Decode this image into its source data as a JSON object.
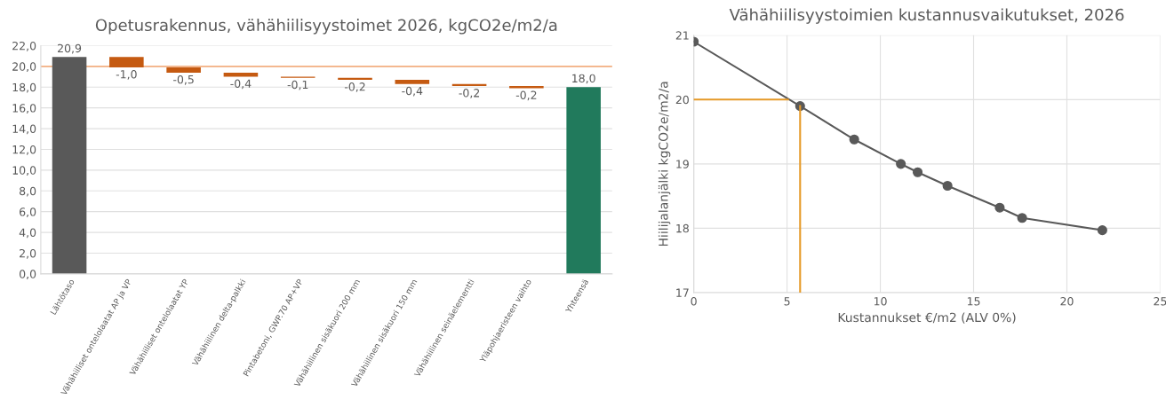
{
  "chart_data": [
    {
      "type": "bar",
      "title": "Opetusrakennus, vähähiilisyystoimet 2026, kgCO2e/m2/a",
      "categories": [
        "Lähtötaso",
        "Vähähiiliset ontelolaatat AP ja VP",
        "Vähähiiliset ontelolaatat YP",
        "Vähähiilinen delta-palkki",
        "Pintabetoni, GWP.70 AP+VP",
        "Vähähiilinen sisäkuori 200 mm",
        "Vähähiilinen sisäkuori 150 mm",
        "Vähähiilinen seinäelementti",
        "Yläpohjaeristeen vaihto",
        "Yhteensä"
      ],
      "values": [
        20.9,
        -1.0,
        -0.5,
        -0.4,
        -0.1,
        -0.2,
        -0.4,
        -0.2,
        -0.2,
        18.0
      ],
      "base": [
        0,
        20.9,
        19.9,
        19.4,
        19.0,
        18.9,
        18.7,
        18.3,
        18.1,
        0
      ],
      "colors": [
        "#595959",
        "#c55a11",
        "#c55a11",
        "#c55a11",
        "#c55a11",
        "#c55a11",
        "#c55a11",
        "#c55a11",
        "#c55a11",
        "#217a5c"
      ],
      "value_labels": [
        "20,9",
        "-1,0",
        "-0,5",
        "-0,4",
        "-0,1",
        "-0,2",
        "-0,4",
        "-0,2",
        "-0,2",
        "18,0"
      ],
      "ylim": [
        0,
        22
      ],
      "yticks": [
        {
          "value": 0,
          "label": "0,0"
        },
        {
          "value": 2,
          "label": "2,0"
        },
        {
          "value": 4,
          "label": "4,0"
        },
        {
          "value": 6,
          "label": "6,0"
        },
        {
          "value": 8,
          "label": "8,0"
        },
        {
          "value": 10,
          "label": "10,0"
        },
        {
          "value": 12,
          "label": "12,0"
        },
        {
          "value": 14,
          "label": "14,0"
        },
        {
          "value": 16,
          "label": "16,0"
        },
        {
          "value": 18,
          "label": "18,0"
        },
        {
          "value": 20,
          "label": "20,0"
        },
        {
          "value": 22,
          "label": "22,0"
        }
      ],
      "ref_lines": [
        {
          "axis": "y",
          "value": 20,
          "color": "#f4b183"
        }
      ],
      "grid": "y"
    },
    {
      "type": "line",
      "title": "Vähähiilisyystoimien kustannusvaikutukset, 2026",
      "xlabel": "Kustannukset €/m2 (ALV 0%)",
      "ylabel": "Hiilijalanjälki kgCO2e/m2/a",
      "series": [
        {
          "color": "#595959",
          "marker": "circle",
          "x": [
            0,
            5.7,
            8.6,
            11.1,
            12.0,
            13.6,
            16.4,
            17.6,
            21.9
          ],
          "values": [
            20.9,
            19.9,
            19.38,
            19.0,
            18.87,
            18.66,
            18.32,
            18.16,
            17.97
          ]
        },
        {
          "color": "#e69a28",
          "marker": "none",
          "x": [
            0,
            5.05
          ],
          "values": [
            20,
            20
          ]
        },
        {
          "color": "#e69a28",
          "marker": "none",
          "x": [
            5.7,
            5.7
          ],
          "values": [
            19.9,
            17
          ]
        }
      ],
      "xlim": [
        0,
        25
      ],
      "xticks": [
        0,
        5,
        10,
        15,
        20,
        25
      ],
      "ylim": [
        17,
        21
      ],
      "yticks": [
        17,
        18,
        19,
        20,
        21
      ],
      "grid": true
    }
  ]
}
